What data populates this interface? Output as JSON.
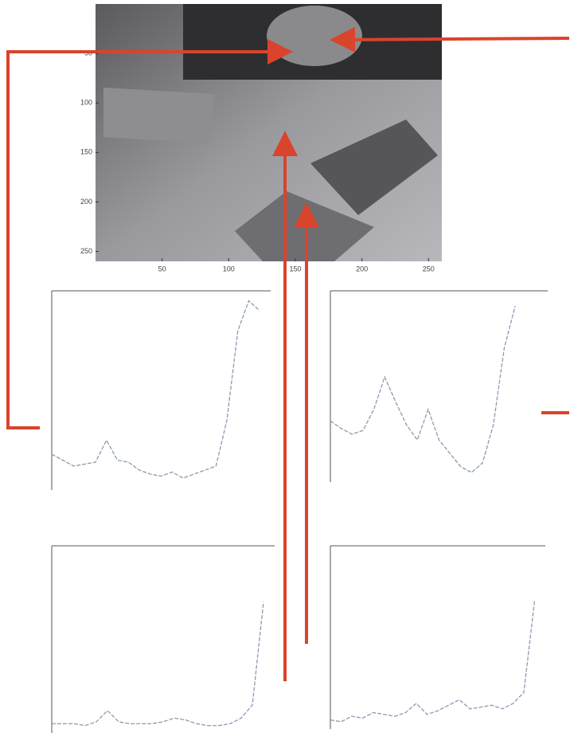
{
  "chart_data": [
    {
      "type": "image",
      "xlim": [
        0,
        260
      ],
      "ylim": [
        260,
        0
      ],
      "xticks": [
        50,
        100,
        150,
        200,
        250
      ],
      "yticks": [
        50,
        100,
        150,
        200,
        250
      ]
    },
    {
      "type": "line",
      "xlim": [
        0,
        300
      ],
      "ylim": [
        0,
        100
      ],
      "color": "#8a9bb0",
      "x": [
        0,
        15,
        30,
        45,
        60,
        75,
        90,
        105,
        120,
        135,
        150,
        165,
        180,
        195,
        210,
        225,
        240,
        255,
        270,
        285,
        300
      ],
      "values": [
        18,
        15,
        12,
        13,
        14,
        25,
        15,
        14,
        10,
        8,
        7,
        9,
        6,
        8,
        10,
        12,
        35,
        80,
        95,
        90,
        null
      ]
    },
    {
      "type": "line",
      "xlim": [
        0,
        300
      ],
      "ylim": [
        0,
        100
      ],
      "color": "#8a9bb0",
      "x": [
        0,
        15,
        30,
        45,
        60,
        75,
        90,
        105,
        120,
        135,
        150,
        165,
        180,
        195,
        210,
        225,
        240,
        255,
        270,
        285,
        300
      ],
      "values": [
        32,
        28,
        25,
        27,
        38,
        55,
        42,
        30,
        22,
        38,
        22,
        15,
        8,
        5,
        10,
        30,
        70,
        92,
        null,
        null,
        null
      ]
    },
    {
      "type": "line",
      "xlim": [
        0,
        300
      ],
      "ylim": [
        0,
        100
      ],
      "color": "#8a9bb0",
      "x": [
        0,
        15,
        30,
        45,
        60,
        75,
        90,
        105,
        120,
        135,
        150,
        165,
        180,
        195,
        210,
        225,
        240,
        255,
        270,
        285,
        300
      ],
      "values": [
        5,
        5,
        5,
        4,
        6,
        12,
        6,
        5,
        5,
        5,
        6,
        8,
        7,
        5,
        4,
        4,
        5,
        8,
        15,
        70,
        null
      ]
    },
    {
      "type": "line",
      "xlim": [
        0,
        300
      ],
      "ylim": [
        0,
        100
      ],
      "color": "#8a9bb0",
      "x": [
        0,
        15,
        30,
        45,
        60,
        75,
        90,
        105,
        120,
        135,
        150,
        165,
        180,
        195,
        210,
        225,
        240,
        255,
        270,
        285,
        300
      ],
      "values": [
        5,
        4,
        7,
        6,
        9,
        8,
        7,
        9,
        14,
        8,
        10,
        13,
        16,
        11,
        12,
        13,
        11,
        14,
        20,
        70,
        null
      ]
    }
  ]
}
